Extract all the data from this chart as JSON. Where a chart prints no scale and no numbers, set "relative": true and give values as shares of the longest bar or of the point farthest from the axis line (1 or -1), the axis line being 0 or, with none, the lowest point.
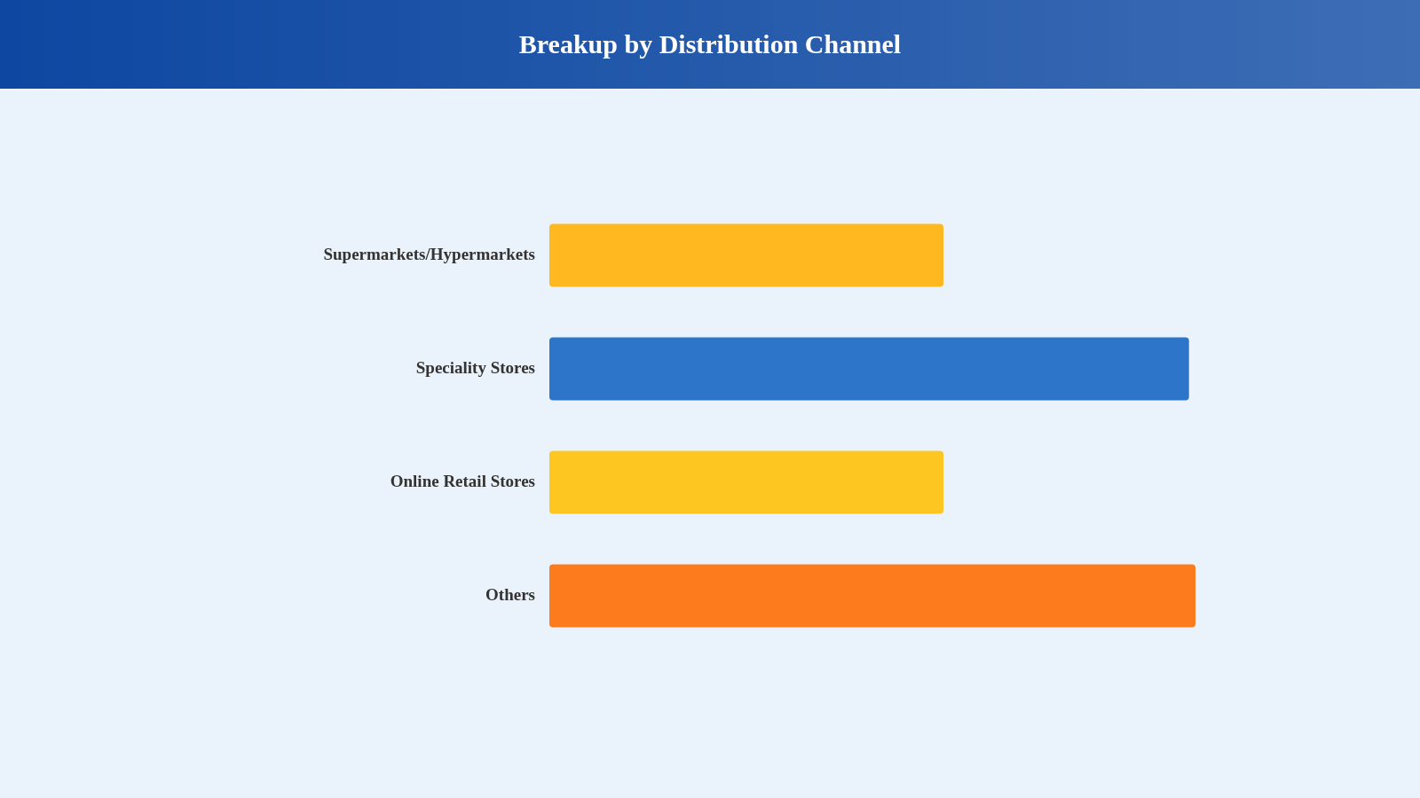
{
  "chart_data": {
    "type": "bar",
    "orientation": "horizontal",
    "relative": true,
    "title": "Breakup by Distribution Channel",
    "categories": [
      "Supermarkets/Hypermarkets",
      "Speciality Stores",
      "Online Retail Stores",
      "Others"
    ],
    "values": [
      0.61,
      0.99,
      0.61,
      1
    ],
    "colors": [
      "#ffb81f",
      "#2d75c8",
      "#fdc620",
      "#fd7b1c"
    ],
    "grid": false,
    "legend": false
  }
}
